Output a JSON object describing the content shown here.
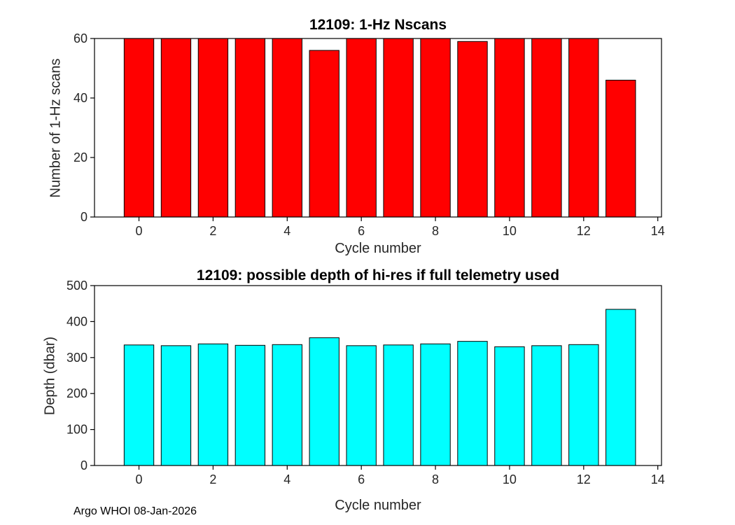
{
  "page": {
    "footer": "Argo WHOI 08-Jan-2026",
    "background_color": "#ffffff",
    "axis_color": "#000000",
    "text_color": "#262626"
  },
  "chart_data": [
    {
      "type": "bar",
      "title": "12109: 1-Hz Nscans",
      "xlabel": "Cycle number",
      "ylabel": "Number of 1-Hz scans",
      "bar_color": "#ff0000",
      "bar_edge_color": "#000000",
      "bar_width": 0.8,
      "categories": [
        0,
        1,
        2,
        3,
        4,
        5,
        6,
        7,
        8,
        9,
        10,
        11,
        12,
        13
      ],
      "values": [
        60,
        60,
        60,
        60,
        60,
        56,
        60,
        60,
        60,
        59,
        60,
        60,
        60,
        46
      ],
      "xlim": [
        -1.2,
        14.1
      ],
      "ylim": [
        0,
        60
      ],
      "xticks": [
        0,
        2,
        4,
        6,
        8,
        10,
        12,
        14
      ],
      "yticks": [
        0,
        20,
        40,
        60
      ],
      "grid": false,
      "legend": null
    },
    {
      "type": "bar",
      "title": "12109: possible depth of hi-res if full telemetry used",
      "xlabel": "Cycle number",
      "ylabel": "Depth (dbar)",
      "bar_color": "#00ffff",
      "bar_edge_color": "#000000",
      "bar_width": 0.8,
      "categories": [
        0,
        1,
        2,
        3,
        4,
        5,
        6,
        7,
        8,
        9,
        10,
        11,
        12,
        13
      ],
      "values": [
        335,
        333,
        338,
        334,
        336,
        355,
        333,
        335,
        338,
        345,
        330,
        333,
        336,
        434
      ],
      "xlim": [
        -1.2,
        14.1
      ],
      "ylim": [
        0,
        500
      ],
      "xticks": [
        0,
        2,
        4,
        6,
        8,
        10,
        12,
        14
      ],
      "yticks": [
        0,
        100,
        200,
        300,
        400,
        500
      ],
      "grid": false,
      "legend": null
    }
  ]
}
